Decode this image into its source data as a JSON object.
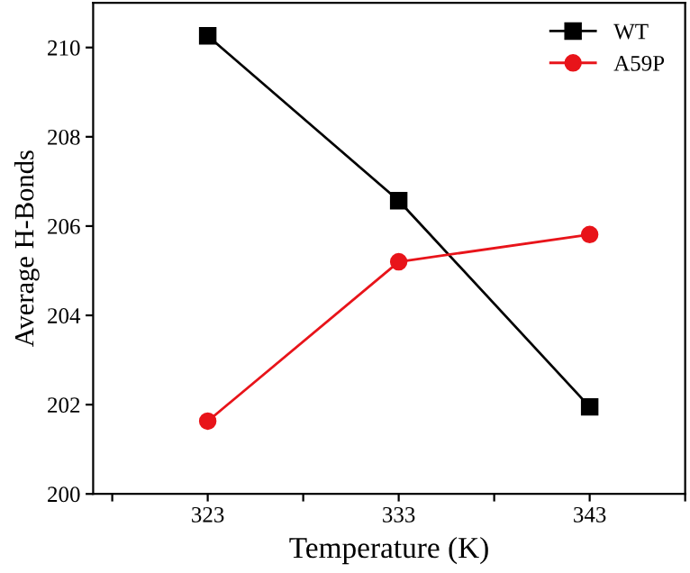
{
  "chart_data": {
    "type": "line",
    "xlabel": "Temperature (K)",
    "ylabel": "Average H-Bonds",
    "x": [
      323,
      333,
      343
    ],
    "series": [
      {
        "name": "WT",
        "color": "#000000",
        "marker": "square",
        "values": [
          210.26,
          206.57,
          201.95
        ]
      },
      {
        "name": "A59P",
        "color": "#e8141a",
        "marker": "circle",
        "values": [
          201.63,
          205.2,
          205.81
        ]
      }
    ],
    "xlim": [
      317,
      348
    ],
    "xticks": [
      {
        "value": 318,
        "label": null
      },
      323,
      {
        "value": 328,
        "label": null
      },
      333,
      {
        "value": 338,
        "label": null
      },
      343,
      {
        "value": 348,
        "label": null
      }
    ],
    "ylim": [
      200,
      211
    ],
    "yticks": [
      200,
      202,
      204,
      206,
      208,
      210
    ],
    "grid": false,
    "legend": "top right",
    "line_style": "solid"
  }
}
